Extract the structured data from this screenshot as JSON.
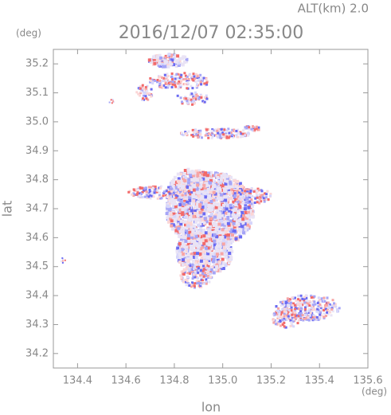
{
  "chart_data": {
    "type": "map",
    "title": "2016/12/07 02:35:00",
    "subtitle": "ALT(km) 2.0",
    "x_label": "lon",
    "y_label": "lat",
    "x_unit": "(deg)",
    "y_unit": "(deg)",
    "xlim": [
      134.3,
      135.6
    ],
    "xticks": [
      134.4,
      134.6,
      134.8,
      {
        "value": 135,
        "label": "135.0"
      },
      135.2,
      135.4,
      135.6
    ],
    "ylim": [
      34.15,
      35.25
    ],
    "yticks": [
      34.2,
      34.3,
      34.4,
      34.5,
      34.6,
      34.7,
      34.8,
      34.9,
      {
        "value": 35,
        "label": "35.0"
      },
      35.1,
      35.2
    ]
  }
}
